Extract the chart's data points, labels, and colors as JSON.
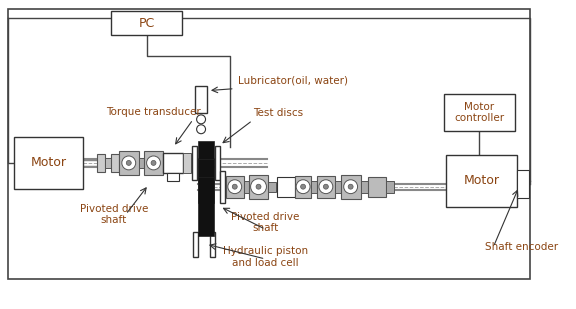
{
  "bg": "#ffffff",
  "tc": "#8B4513",
  "ec": "#333333",
  "figsize": [
    5.76,
    3.09
  ],
  "dpi": 100,
  "labels": {
    "pc": "PC",
    "motor_l": "Motor",
    "motor_r": "Motor",
    "mc": "Motor\ncontroller",
    "torque": "Torque transducer",
    "lubricator": "Lubricator(oil, water)",
    "test_discs": "Test discs",
    "pivot_l": "Pivoted drive\nshaft",
    "pivot_r": "Pivoted drive\nshaft",
    "hydraulic": "Hydraulic piston\nand load cell",
    "shaft_enc": "Shaft encoder"
  }
}
